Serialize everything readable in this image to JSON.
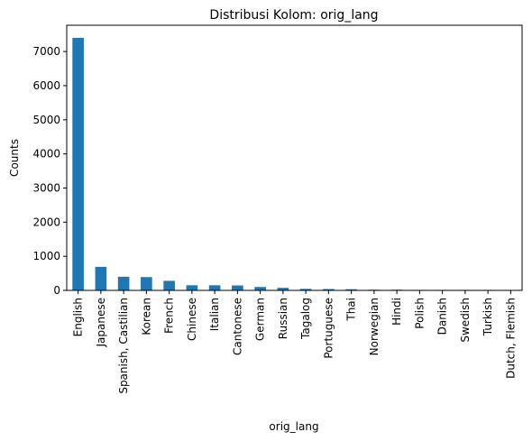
{
  "chart_data": {
    "type": "bar",
    "title": "Distribusi Kolom: orig_lang",
    "xlabel": "orig_lang",
    "ylabel": "Counts",
    "categories": [
      "English",
      "Japanese",
      "Spanish, Castilian",
      "Korean",
      "French",
      "Chinese",
      "Italian",
      "Cantonese",
      "German",
      "Russian",
      "Tagalog",
      "Portuguese",
      "Thai",
      "Norwegian",
      "Hindi",
      "Polish",
      "Danish",
      "Swedish",
      "Turkish",
      "Dutch, Flemish"
    ],
    "values": [
      7400,
      690,
      400,
      390,
      280,
      150,
      150,
      145,
      100,
      75,
      45,
      40,
      35,
      20,
      20,
      15,
      15,
      15,
      15,
      12
    ],
    "ylim": [
      0,
      7770
    ],
    "yticks": [
      "0",
      "1000",
      "2000",
      "3000",
      "4000",
      "5000",
      "6000",
      "7000"
    ],
    "grid": false,
    "bar_color": "#1f77b4"
  }
}
